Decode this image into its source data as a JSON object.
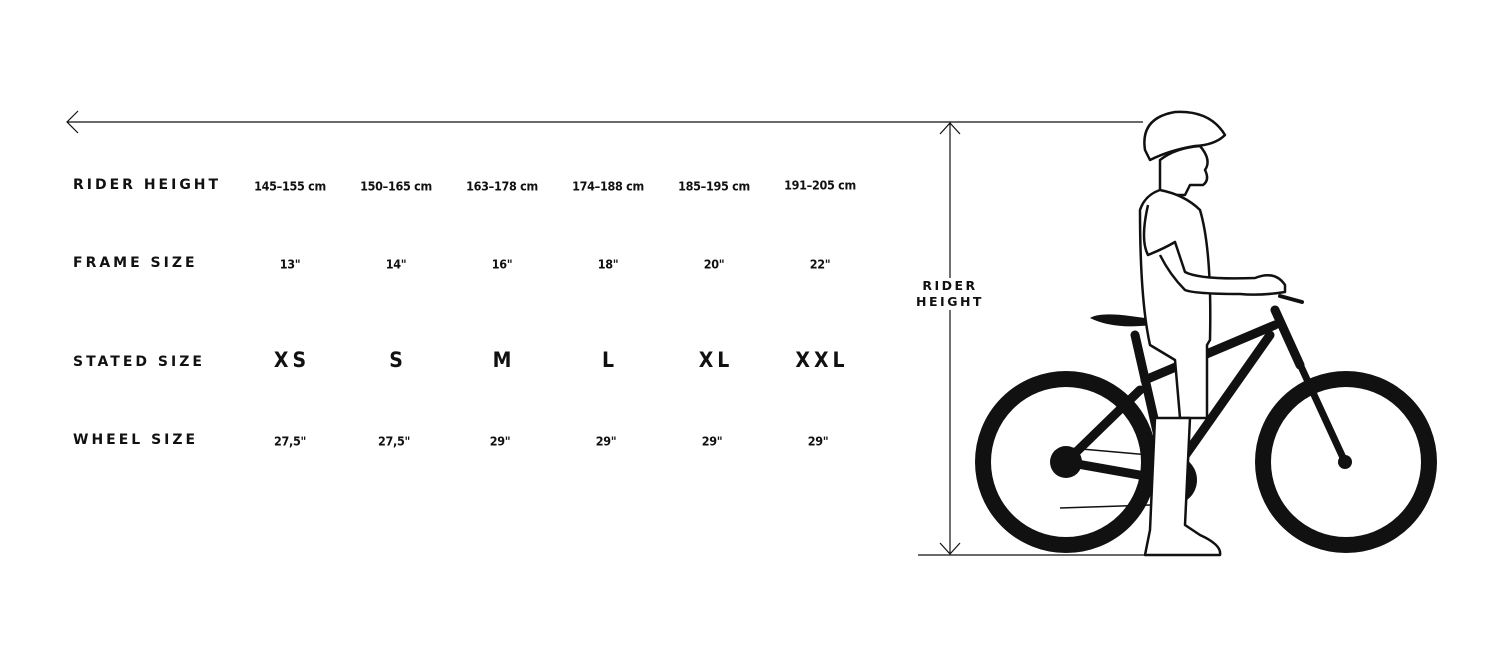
{
  "rows": [
    {
      "label": "RIDER HEIGHT",
      "values": [
        "145–155 cm",
        "150–165 cm",
        "163–178 cm",
        "174–188 cm",
        "185–195 cm",
        "191–205 cm"
      ]
    },
    {
      "label": "FRAME SIZE",
      "values": [
        "13\"",
        "14\"",
        "16\"",
        "18\"",
        "20\"",
        "22\""
      ]
    },
    {
      "label": "STATED SIZE",
      "values": [
        "XS",
        "S",
        "M",
        "L",
        "XL",
        "XXL"
      ]
    },
    {
      "label": "WHEEL SIZE",
      "values": [
        "27,5\"",
        "27,5\"",
        "29\"",
        "29\"",
        "29\"",
        "29\""
      ]
    }
  ],
  "illustration": {
    "measure_label_line1": "RIDER",
    "measure_label_line2": "HEIGHT",
    "subject": "rider-standing-next-to-mountain-bike"
  }
}
